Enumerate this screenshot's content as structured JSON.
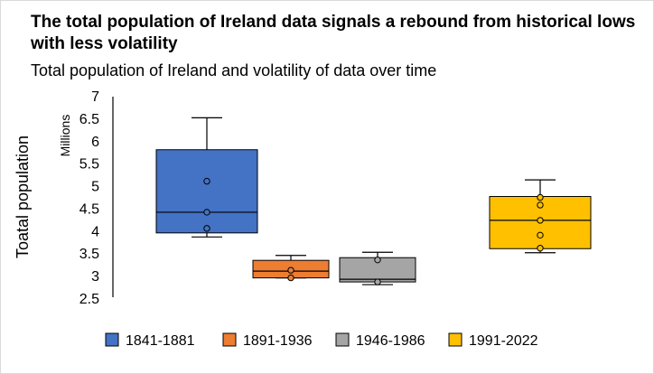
{
  "title": "The total population of Ireland data signals a rebound from historical lows with less volatility",
  "subtitle": "Total population  of Ireland and volatility  of data over time",
  "chart_data": {
    "type": "box",
    "ylabel": "Toatal population",
    "yunit": "Millions",
    "ylim": [
      2.5,
      7
    ],
    "yticks": [
      2.5,
      3,
      3.5,
      4,
      4.5,
      5,
      5.5,
      6,
      6.5,
      7
    ],
    "ytick_labels": [
      "2.5",
      "3",
      "3.5",
      "4",
      "4.5",
      "5",
      "5.5",
      "6",
      "6.5",
      "7"
    ],
    "grid": false,
    "legend_position": "bottom",
    "series": [
      {
        "name": "1841-1881",
        "color": "#4472C4",
        "min": 3.88,
        "q1": 3.97,
        "median": 4.43,
        "q3": 5.82,
        "max": 6.53,
        "points": [
          4.07,
          4.43,
          5.12
        ]
      },
      {
        "name": "1891-1936",
        "color": "#ED7D31",
        "min": 2.97,
        "q1": 2.97,
        "median": 3.12,
        "q3": 3.36,
        "max": 3.47,
        "points": [
          2.97,
          3.14
        ]
      },
      {
        "name": "1946-1986",
        "color": "#A5A5A5",
        "min": 2.82,
        "q1": 2.88,
        "median": 2.94,
        "q3": 3.42,
        "max": 3.54,
        "points": [
          2.88,
          3.37
        ]
      },
      {
        "name": "1991-2022",
        "color": "#FFC000",
        "min": 3.53,
        "q1": 3.62,
        "median": 4.25,
        "q3": 4.78,
        "max": 5.15,
        "points": [
          3.63,
          3.92,
          4.25,
          4.59,
          4.76
        ]
      }
    ]
  }
}
